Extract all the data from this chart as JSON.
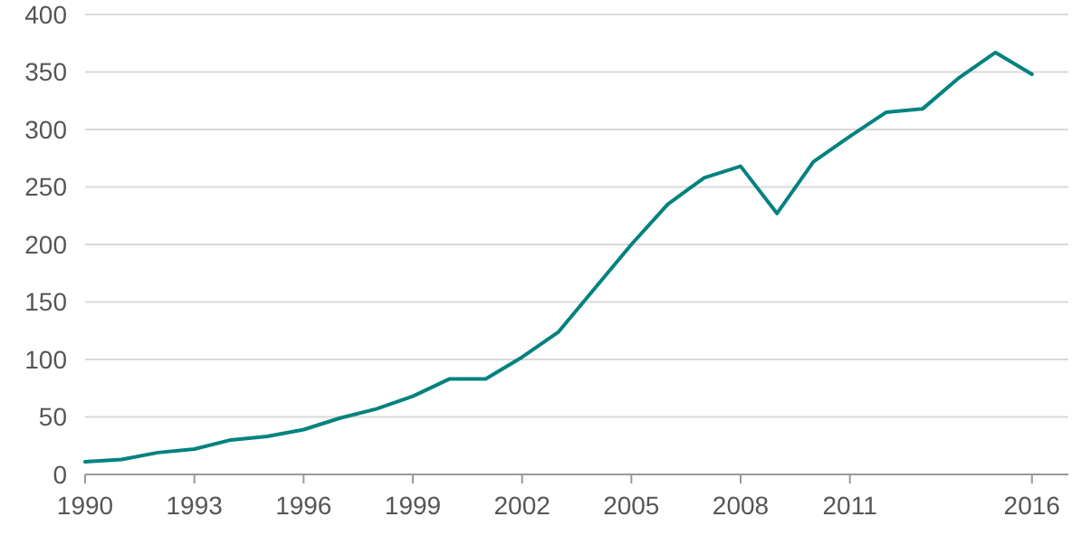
{
  "chart_data": {
    "type": "line",
    "x": [
      1990,
      1991,
      1992,
      1993,
      1994,
      1995,
      1996,
      1997,
      1998,
      1999,
      2000,
      2001,
      2002,
      2003,
      2004,
      2005,
      2006,
      2007,
      2008,
      2009,
      2010,
      2011,
      2012,
      2013,
      2014,
      2015,
      2016
    ],
    "series": [
      {
        "color": "#00827f",
        "values": [
          11,
          13,
          19,
          22,
          30,
          33,
          39,
          49,
          57,
          68,
          83,
          83,
          102,
          124,
          162,
          200,
          235,
          258,
          268,
          227,
          272,
          294,
          315,
          318,
          345,
          367,
          348
        ]
      }
    ],
    "xlim": [
      1990,
      2017
    ],
    "xticks": [
      1990,
      1993,
      1996,
      1999,
      2002,
      2005,
      2008,
      2011,
      2016
    ],
    "ylim": [
      0,
      400
    ],
    "yticks": [
      0,
      50,
      100,
      150,
      200,
      250,
      300,
      350,
      400
    ],
    "grid": "y",
    "marker": "none",
    "line_style": "solid"
  }
}
